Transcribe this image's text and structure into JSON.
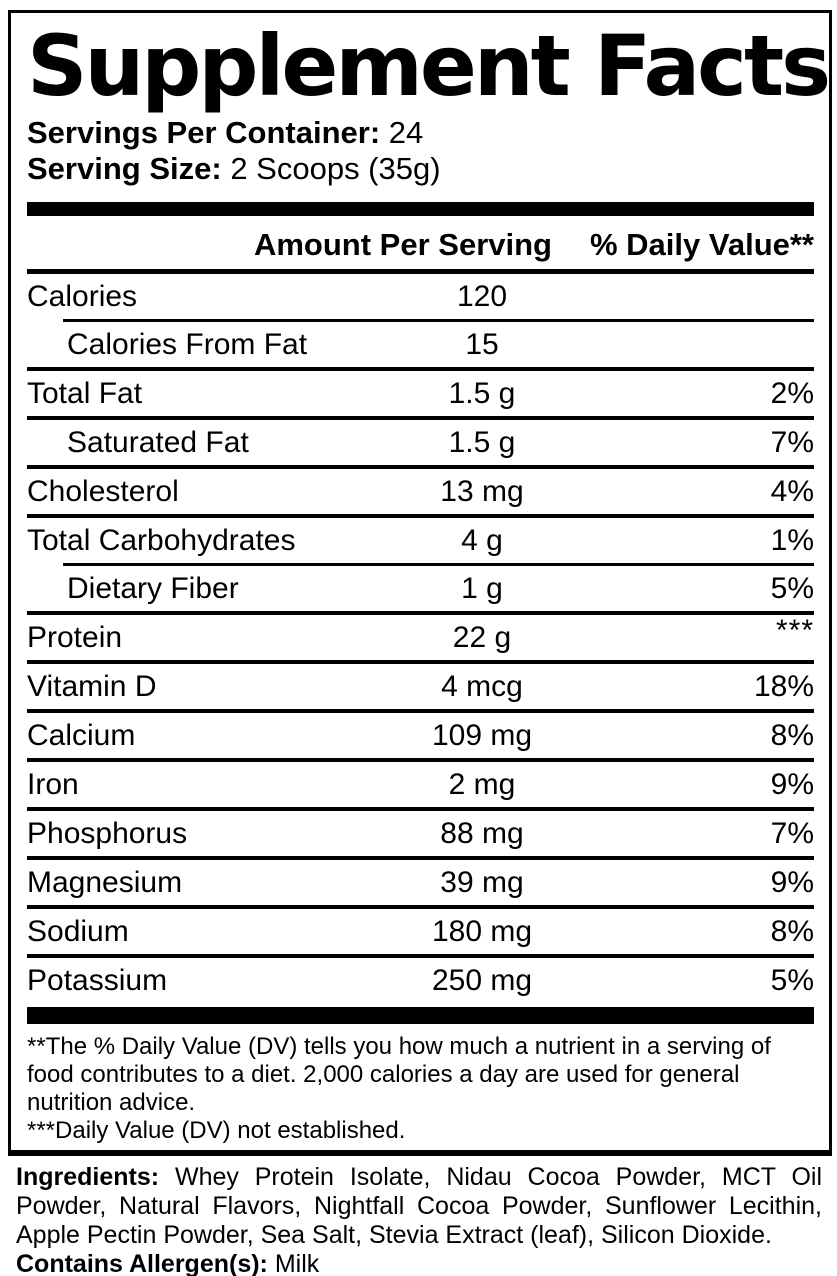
{
  "label": {
    "title": "Supplement Facts",
    "servings_per_container": {
      "label": "Servings Per Container:",
      "value": "24"
    },
    "serving_size": {
      "label": "Serving Size:",
      "value": "2 Scoops (35g)"
    },
    "columns": {
      "amount": "Amount Per Serving",
      "daily_value": "% Daily Value**"
    },
    "rows": [
      {
        "name": "Calories",
        "amount": "120",
        "dv": "",
        "indent": false
      },
      {
        "name": "Calories From Fat",
        "amount": "15",
        "dv": "",
        "indent": true
      },
      {
        "name": "Total Fat",
        "amount": "1.5 g",
        "dv": "2%",
        "indent": false
      },
      {
        "name": "Saturated Fat",
        "amount": "1.5 g",
        "dv": "7%",
        "indent": true
      },
      {
        "name": "Cholesterol",
        "amount": "13 mg",
        "dv": "4%",
        "indent": false
      },
      {
        "name": "Total Carbohydrates",
        "amount": "4 g",
        "dv": "1%",
        "indent": false
      },
      {
        "name": "Dietary Fiber",
        "amount": "1 g",
        "dv": "5%",
        "indent": true
      },
      {
        "name": "Protein",
        "amount": "22 g",
        "dv": "***",
        "indent": false
      },
      {
        "name": "Vitamin D",
        "amount": "4 mcg",
        "dv": "18%",
        "indent": false
      },
      {
        "name": "Calcium",
        "amount": "109 mg",
        "dv": "8%",
        "indent": false
      },
      {
        "name": "Iron",
        "amount": "2 mg",
        "dv": "9%",
        "indent": false
      },
      {
        "name": "Phosphorus",
        "amount": "88 mg",
        "dv": "7%",
        "indent": false
      },
      {
        "name": "Magnesium",
        "amount": "39 mg",
        "dv": "9%",
        "indent": false
      },
      {
        "name": "Sodium",
        "amount": "180 mg",
        "dv": "8%",
        "indent": false
      },
      {
        "name": "Potassium",
        "amount": "250 mg",
        "dv": "5%",
        "indent": false
      }
    ],
    "footnotes": [
      "**The % Daily Value (DV) tells you how much a nutrient in a serving of food contributes to a diet. 2,000 calories a day are used for general nutrition advice.",
      "***Daily Value (DV) not established."
    ]
  },
  "ingredients": {
    "label": "Ingredients:",
    "text": "Whey Protein Isolate, Nidau Cocoa Powder, MCT Oil Powder, Natural Flavors, Nightfall Cocoa Powder, Sunflower Lecithin, Apple Pectin Powder, Sea Salt, Stevia Extract (leaf), Silicon Dioxide.",
    "allergen_label": "Contains Allergen(s):",
    "allergen_value": "Milk"
  },
  "colors": {
    "text": "#000000",
    "background": "#ffffff"
  }
}
